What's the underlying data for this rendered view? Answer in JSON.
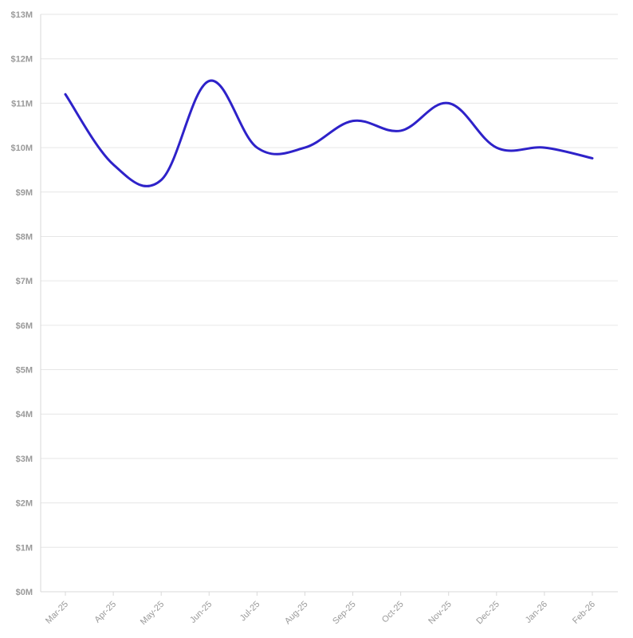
{
  "chart_data": {
    "type": "line",
    "x": [
      "Mar-25",
      "Apr-25",
      "May-25",
      "Jun-25",
      "Jul-25",
      "Aug-25",
      "Sep-25",
      "Oct-25",
      "Nov-25",
      "Dec-25",
      "Jan-26",
      "Feb-26"
    ],
    "series": [
      {
        "values": [
          11.2,
          9.62,
          9.27,
          11.5,
          10.0,
          10.0,
          10.6,
          10.38,
          11.0,
          10.0,
          10.0,
          9.76
        ],
        "color": "#2e22c9"
      }
    ],
    "ylim": [
      0,
      13
    ],
    "y_ticks": [
      0,
      1,
      2,
      3,
      4,
      5,
      6,
      7,
      8,
      9,
      10,
      11,
      12,
      13
    ],
    "y_tick_labels": [
      "$0M",
      "$1M",
      "$2M",
      "$3M",
      "$4M",
      "$5M",
      "$6M",
      "$7M",
      "$8M",
      "$9M",
      "$10M",
      "$11M",
      "$12M",
      "$13M"
    ],
    "grid": true,
    "legend": "none",
    "smooth": true
  }
}
